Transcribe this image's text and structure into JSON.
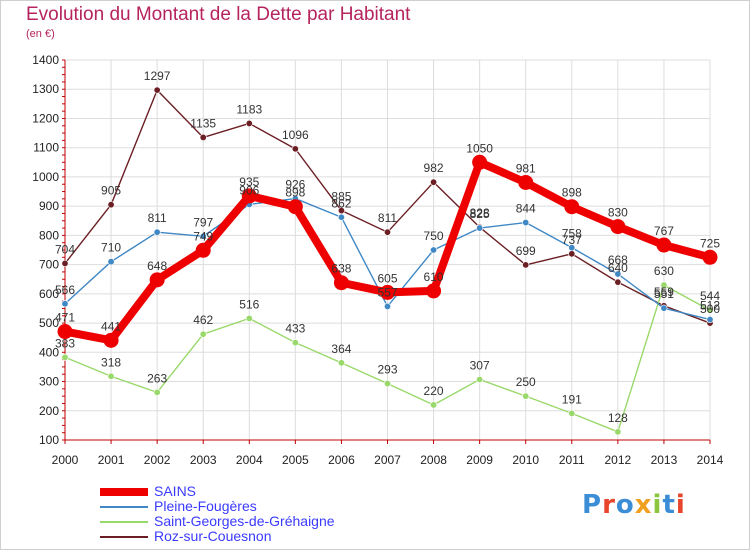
{
  "chart_data": {
    "type": "line",
    "title": "Evolution du Montant de la Dette par Habitant",
    "subtitle": "(en €)",
    "x": [
      "2000",
      "2001",
      "2002",
      "2003",
      "2004",
      "2005",
      "2006",
      "2007",
      "2008",
      "2009",
      "2010",
      "2011",
      "2012",
      "2013",
      "2014"
    ],
    "ylim": [
      100,
      1400
    ],
    "yticks": [
      100,
      200,
      300,
      400,
      500,
      600,
      700,
      800,
      900,
      1000,
      1100,
      1200,
      1300,
      1400
    ],
    "grid": true,
    "legend_position": "bottom-left",
    "series": [
      {
        "name": "SAINS",
        "color": "#ee0000",
        "values": [
          471,
          441,
          648,
          749,
          935,
          898,
          638,
          605,
          610,
          1050,
          981,
          898,
          830,
          767,
          725
        ]
      },
      {
        "name": "Pleine-Fougères",
        "color": "#3f88c5",
        "values": [
          566,
          710,
          811,
          797,
          906,
          926,
          862,
          557,
          750,
          825,
          844,
          758,
          668,
          551,
          512
        ]
      },
      {
        "name": "Saint-Georges-de-Gréhaigne",
        "color": "#99d86a",
        "values": [
          383,
          318,
          263,
          462,
          516,
          433,
          364,
          293,
          220,
          307,
          250,
          191,
          128,
          630,
          544
        ]
      },
      {
        "name": "Roz-sur-Couesnon",
        "color": "#6b1f24",
        "values": [
          704,
          905,
          1297,
          1135,
          1183,
          1096,
          885,
          811,
          982,
          828,
          699,
          737,
          640,
          559,
          500
        ]
      }
    ]
  },
  "logo": {
    "text": "Proxiti",
    "colors": [
      "#3b8ed6",
      "#e9452c",
      "#3b8ed6",
      "#f0a020",
      "#8cc63f",
      "#3b8ed6",
      "#e9452c"
    ]
  }
}
